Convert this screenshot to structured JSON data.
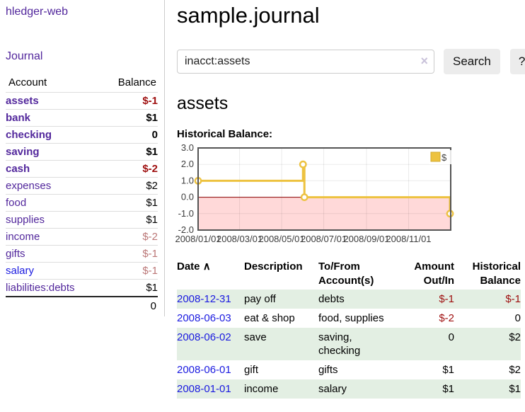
{
  "colors": {
    "purple_link": "#52279c",
    "blue_link": "#1a1ae0",
    "negative_strong": "#9e0e0e",
    "negative_soft": "#bb7777",
    "row_green": "#e3efe3",
    "chart_line": "#edc240",
    "chart_negative_fill": "#ffd9d9",
    "chart_zero_line": "#8b0000"
  },
  "sidebar": {
    "brand": "hledger-web",
    "journal_link": "Journal",
    "columns": {
      "account": "Account",
      "balance": "Balance"
    },
    "accounts": [
      {
        "name": "assets",
        "balance": "$-1",
        "indent": 1,
        "bold": true,
        "balance_color": "strong",
        "link_color": "purple"
      },
      {
        "name": "bank",
        "balance": "$1",
        "indent": 2,
        "bold": true,
        "balance_color": "normal",
        "link_color": "purple"
      },
      {
        "name": "checking",
        "balance": "0",
        "indent": 3,
        "bold": true,
        "balance_color": "normal",
        "link_color": "purple"
      },
      {
        "name": "saving",
        "balance": "$1",
        "indent": 3,
        "bold": true,
        "balance_color": "normal",
        "link_color": "purple"
      },
      {
        "name": "cash",
        "balance": "$-2",
        "indent": 2,
        "bold": true,
        "balance_color": "strong",
        "link_color": "purple"
      },
      {
        "name": "expenses",
        "balance": "$2",
        "indent": 1,
        "bold": false,
        "balance_color": "normal",
        "link_color": "purple"
      },
      {
        "name": "food",
        "balance": "$1",
        "indent": 2,
        "bold": false,
        "balance_color": "normal",
        "link_color": "purple"
      },
      {
        "name": "supplies",
        "balance": "$1",
        "indent": 2,
        "bold": false,
        "balance_color": "normal",
        "link_color": "purple"
      },
      {
        "name": "income",
        "balance": "$-2",
        "indent": 1,
        "bold": false,
        "balance_color": "soft",
        "link_color": "purple"
      },
      {
        "name": "gifts",
        "balance": "$-1",
        "indent": 2,
        "bold": false,
        "balance_color": "soft",
        "link_color": "purple"
      },
      {
        "name": "salary",
        "balance": "$-1",
        "indent": 2,
        "bold": false,
        "balance_color": "soft",
        "link_color": "blue"
      },
      {
        "name": "liabilities:debts",
        "balance": "$1",
        "indent": 1,
        "bold": false,
        "balance_color": "normal",
        "link_color": "purple"
      }
    ],
    "total": "0"
  },
  "main": {
    "title": "sample.journal",
    "search": {
      "value": "inacct:assets",
      "clear_icon": "×",
      "search_button": "Search",
      "help_button": "?"
    },
    "account_title": "assets",
    "chart_heading": "Historical Balance:"
  },
  "chart_data": {
    "type": "line",
    "step": true,
    "title": "Historical Balance",
    "legend": [
      {
        "label": "$",
        "color": "#edc240"
      }
    ],
    "legend_position": "top-right",
    "points": [
      {
        "date": "2008-01-01",
        "value": 1
      },
      {
        "date": "2008-06-01",
        "value": 2
      },
      {
        "date": "2008-06-03",
        "value": 0
      },
      {
        "date": "2008-12-31",
        "value": -1
      }
    ],
    "xrange": [
      "2008-01-01",
      "2009-01-01"
    ],
    "ylim": [
      -2,
      3
    ],
    "yticks": [
      "3.0",
      "2.0",
      "1.0",
      "0.0",
      "-1.0",
      "-2.0"
    ],
    "xticks": [
      "2008/01/01",
      "2008/03/01",
      "2008/05/01",
      "2008/07/01",
      "2008/09/01",
      "2008/11/01"
    ],
    "grid": true,
    "negative_region_fill": "#ffd9d9",
    "zero_line_color": "#8b0000"
  },
  "register_table": {
    "headers": {
      "date": "Date",
      "sort_icon": "∧",
      "description": "Description",
      "tofrom": "To/From Account(s)",
      "amount": "Amount Out/In",
      "balance": "Historical Balance"
    },
    "rows": [
      {
        "date": "2008-12-31",
        "description": "pay off",
        "tofrom": "debts",
        "amount": "$-1",
        "balance": "$-1",
        "amount_neg": true,
        "balance_neg": true,
        "shaded": true
      },
      {
        "date": "2008-06-03",
        "description": "eat & shop",
        "tofrom": "food, supplies",
        "amount": "$-2",
        "balance": "0",
        "amount_neg": true,
        "balance_neg": false,
        "shaded": false
      },
      {
        "date": "2008-06-02",
        "description": "save",
        "tofrom": "saving, checking",
        "amount": "0",
        "balance": "$2",
        "amount_neg": false,
        "balance_neg": false,
        "shaded": true
      },
      {
        "date": "2008-06-01",
        "description": "gift",
        "tofrom": "gifts",
        "amount": "$1",
        "balance": "$2",
        "amount_neg": false,
        "balance_neg": false,
        "shaded": false
      },
      {
        "date": "2008-01-01",
        "description": "income",
        "tofrom": "salary",
        "amount": "$1",
        "balance": "$1",
        "amount_neg": false,
        "balance_neg": false,
        "shaded": true
      }
    ]
  }
}
